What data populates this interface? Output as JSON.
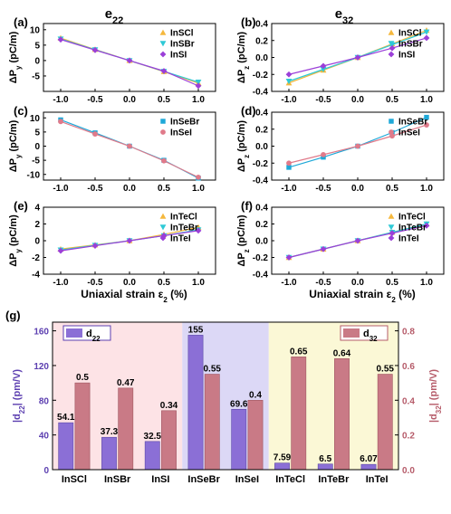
{
  "chart_data": [
    {
      "panel": "(a)",
      "type": "line",
      "title": "e22",
      "xlabel": "",
      "ylabel": "ΔPy (pC/m)",
      "xlim": [
        -1.25,
        1.25
      ],
      "ylim": [
        -10,
        12
      ],
      "xticks": [
        "-1.0",
        "-0.5",
        "0.0",
        "0.5",
        "1.0"
      ],
      "yticks": [
        "10",
        "5",
        "0",
        "-5"
      ],
      "x": [
        -1.0,
        -0.5,
        0.0,
        0.5,
        1.0
      ],
      "series": [
        {
          "name": "InSCl",
          "marker": "triangle-up",
          "color": "#f5b83d",
          "values": [
            7.3,
            3.6,
            0.0,
            -3.6,
            -7.3
          ]
        },
        {
          "name": "InSBr",
          "marker": "triangle-down",
          "color": "#2ec9d6",
          "values": [
            7.0,
            3.5,
            0.0,
            -3.5,
            -7.0
          ]
        },
        {
          "name": "InSI",
          "marker": "diamond",
          "color": "#9b3fd8",
          "values": [
            6.8,
            3.4,
            0.0,
            -3.4,
            -8.2
          ]
        }
      ]
    },
    {
      "panel": "(b)",
      "type": "line",
      "title": "e32",
      "xlabel": "",
      "ylabel": "ΔPz (pC/m)",
      "xlim": [
        -1.25,
        1.25
      ],
      "ylim": [
        -0.4,
        0.4
      ],
      "xticks": [
        "-1.0",
        "-0.5",
        "0.0",
        "0.5",
        "1.0"
      ],
      "yticks": [
        "0.4",
        "0.2",
        "0.0",
        "-0.2",
        "-0.4"
      ],
      "x": [
        -1.0,
        -0.5,
        0.0,
        0.5,
        1.0
      ],
      "series": [
        {
          "name": "InSCl",
          "marker": "triangle-up",
          "color": "#f5b83d",
          "values": [
            -0.3,
            -0.15,
            0.0,
            0.16,
            0.32
          ]
        },
        {
          "name": "InSBr",
          "marker": "triangle-down",
          "color": "#2ec9d6",
          "values": [
            -0.28,
            -0.14,
            0.0,
            0.15,
            0.3
          ]
        },
        {
          "name": "InSI",
          "marker": "diamond",
          "color": "#9b3fd8",
          "values": [
            -0.2,
            -0.1,
            0.0,
            0.11,
            0.23
          ]
        }
      ]
    },
    {
      "panel": "(c)",
      "type": "line",
      "title": "",
      "xlabel": "",
      "ylabel": "ΔPy (pC/m)",
      "xlim": [
        -1.25,
        1.25
      ],
      "ylim": [
        -12,
        12
      ],
      "xticks": [
        "-1.0",
        "-0.5",
        "0.0",
        "0.5",
        "1.0"
      ],
      "yticks": [
        "10",
        "5",
        "0",
        "-5",
        "-10"
      ],
      "x": [
        -1.0,
        -0.5,
        0.0,
        0.5,
        1.0
      ],
      "series": [
        {
          "name": "InSeBr",
          "marker": "square",
          "color": "#1ea8d8",
          "values": [
            9.3,
            4.7,
            0.0,
            -5.0,
            -11.3
          ]
        },
        {
          "name": "InSeI",
          "marker": "circle",
          "color": "#e07a8a",
          "values": [
            8.7,
            4.3,
            0.0,
            -5.2,
            -11.0
          ]
        }
      ]
    },
    {
      "panel": "(d)",
      "type": "line",
      "title": "",
      "xlabel": "",
      "ylabel": "ΔPz (pC/m)",
      "xlim": [
        -1.25,
        1.25
      ],
      "ylim": [
        -0.4,
        0.4
      ],
      "xticks": [
        "-1.0",
        "-0.5",
        "0.0",
        "0.5",
        "1.0"
      ],
      "yticks": [
        "0.4",
        "0.2",
        "0.0",
        "-0.2",
        "-0.4"
      ],
      "x": [
        -1.0,
        -0.5,
        0.0,
        0.5,
        1.0
      ],
      "series": [
        {
          "name": "InSeBr",
          "marker": "square",
          "color": "#1ea8d8",
          "values": [
            -0.25,
            -0.13,
            0.0,
            0.16,
            0.34
          ]
        },
        {
          "name": "InSeI",
          "marker": "circle",
          "color": "#e07a8a",
          "values": [
            -0.2,
            -0.1,
            0.0,
            0.12,
            0.25
          ]
        }
      ]
    },
    {
      "panel": "(e)",
      "type": "line",
      "title": "",
      "xlabel": "Uniaxial strain ε2 (%)",
      "ylabel": "ΔPy (pC/m)",
      "xlim": [
        -1.25,
        1.25
      ],
      "ylim": [
        -4,
        4
      ],
      "xticks": [
        "-1.0",
        "-0.5",
        "0.0",
        "0.5",
        "1.0"
      ],
      "yticks": [
        "4",
        "2",
        "0",
        "-2",
        "-4"
      ],
      "x": [
        -1.0,
        -0.5,
        0.0,
        0.5,
        1.0
      ],
      "series": [
        {
          "name": "InTeCl",
          "marker": "triangle-up",
          "color": "#f5b83d",
          "values": [
            -1.0,
            -0.5,
            0.0,
            0.75,
            1.6
          ]
        },
        {
          "name": "InTeBr",
          "marker": "triangle-down",
          "color": "#2ec9d6",
          "values": [
            -1.1,
            -0.55,
            0.0,
            0.6,
            1.3
          ]
        },
        {
          "name": "InTeI",
          "marker": "diamond",
          "color": "#9b3fd8",
          "values": [
            -1.2,
            -0.6,
            0.0,
            0.6,
            1.2
          ]
        }
      ]
    },
    {
      "panel": "(f)",
      "type": "line",
      "title": "",
      "xlabel": "Uniaxial strain ε2 (%)",
      "ylabel": "ΔPz (pC/m)",
      "xlim": [
        -1.25,
        1.25
      ],
      "ylim": [
        -0.4,
        0.4
      ],
      "xticks": [
        "-1.0",
        "-0.5",
        "0.0",
        "0.5",
        "1.0"
      ],
      "yticks": [
        "0.4",
        "0.2",
        "0.0",
        "-0.2",
        "-0.4"
      ],
      "x": [
        -1.0,
        -0.5,
        0.0,
        0.5,
        1.0
      ],
      "series": [
        {
          "name": "InTeCl",
          "marker": "triangle-up",
          "color": "#f5b83d",
          "values": [
            -0.2,
            -0.1,
            0.0,
            0.1,
            0.2
          ]
        },
        {
          "name": "InTeBr",
          "marker": "triangle-down",
          "color": "#2ec9d6",
          "values": [
            -0.2,
            -0.1,
            0.0,
            0.1,
            0.2
          ]
        },
        {
          "name": "InTeI",
          "marker": "diamond",
          "color": "#9b3fd8",
          "values": [
            -0.2,
            -0.1,
            0.0,
            0.09,
            0.18
          ]
        }
      ]
    },
    {
      "panel": "(g)",
      "type": "bar",
      "categories": [
        "InSCl",
        "InSBr",
        "InSI",
        "InSeBr",
        "InSeI",
        "InTeCl",
        "InTeBr",
        "InTeI"
      ],
      "ylabel_left": "|d22| (pm/V)",
      "ylabel_right": "|d32| (pm/V)",
      "ylim_left": [
        0,
        170
      ],
      "ylim_right": [
        0,
        0.85
      ],
      "yticks_left": [
        "0",
        "40",
        "80",
        "120",
        "160"
      ],
      "yticks_right": [
        "0.0",
        "0.2",
        "0.4",
        "0.6",
        "0.8"
      ],
      "series": [
        {
          "name": "d22",
          "axis": "left",
          "color": "#8b6fd6",
          "values": [
            54.1,
            37.3,
            32.5,
            155,
            69.6,
            7.59,
            6.5,
            6.07
          ],
          "labels": [
            "54.1",
            "37.3",
            "32.5",
            "155",
            "69.6",
            "7.59",
            "6.5",
            "6.07"
          ]
        },
        {
          "name": "d32",
          "axis": "right",
          "color": "#c97a86",
          "values": [
            0.5,
            0.47,
            0.34,
            0.55,
            0.4,
            0.65,
            0.64,
            0.55
          ],
          "labels": [
            "0.5",
            "0.47",
            "0.34",
            "0.55",
            "0.4",
            "0.65",
            "0.64",
            "0.55"
          ]
        }
      ],
      "background_bands": [
        {
          "from": "InSCl",
          "to": "InSI",
          "color": "#fde3e6"
        },
        {
          "from": "InSeBr",
          "to": "InSeI",
          "color": "#dcd8f6"
        },
        {
          "from": "InTeCl",
          "to": "InTeI",
          "color": "#fbf8d6"
        }
      ]
    }
  ]
}
